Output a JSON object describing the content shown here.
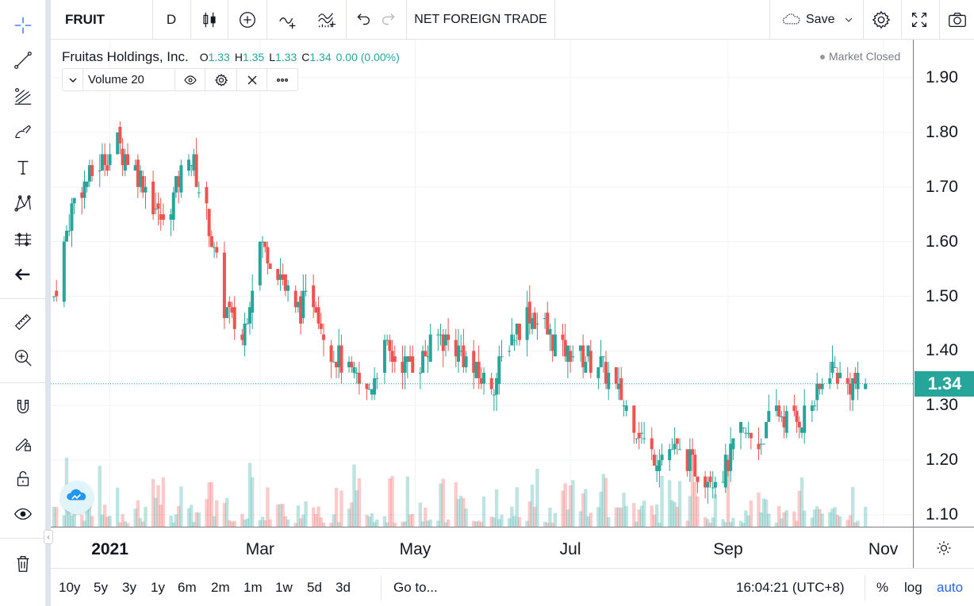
{
  "toolbar": {
    "symbol": "FRUIT",
    "interval": "D",
    "chart_name": "NET FOREIGN TRADE",
    "save_label": "Save"
  },
  "legend": {
    "name": "Fruitas Holdings, Inc.",
    "open_label": "O",
    "open_value": "1.33",
    "high_label": "H",
    "high_value": "1.35",
    "low_label": "L",
    "low_value": "1.33",
    "close_label": "C",
    "close_value": "1.34",
    "change": "0.00 (0.00%)",
    "market_status": "Market Closed",
    "study": "Volume 20"
  },
  "price_axis": {
    "ticks": [
      "1.90",
      "1.80",
      "1.70",
      "1.60",
      "1.50",
      "1.40",
      "1.30",
      "1.20",
      "1.10"
    ],
    "last_price": "1.34"
  },
  "time_axis": {
    "ticks": [
      "2021",
      "Mar",
      "May",
      "Jul",
      "Sep",
      "Nov"
    ]
  },
  "bottom_bar": {
    "ranges": [
      "10y",
      "5y",
      "3y",
      "1y",
      "6m",
      "2m",
      "1m",
      "1w",
      "5d",
      "3d"
    ],
    "goto": "Go to...",
    "clock": "16:04:21 (UTC+8)",
    "percent": "%",
    "log": "log",
    "auto": "auto"
  },
  "colors": {
    "up": "#26a69a",
    "down": "#ef5350",
    "accent": "#2962ff",
    "last_price_bg": "#26a69a"
  },
  "icons": {
    "left_toolbar": [
      "crosshair-icon",
      "trend-line-icon",
      "gann-fib-icon",
      "brush-icon",
      "text-icon",
      "pattern-icon",
      "prediction-icon",
      "back-arrow-icon",
      "ruler-icon",
      "zoom-in-icon",
      "magnet-icon",
      "lock-drawings-icon",
      "unlock-icon",
      "eye-icon",
      "trash-icon"
    ]
  },
  "chart_data": {
    "type": "candlestick",
    "symbol": "FRUIT",
    "ylim": [
      1.07,
      1.98
    ],
    "last_close": 1.34,
    "approx_close_path": [
      {
        "x": "2020-12-10",
        "y": 1.5
      },
      {
        "x": "2020-12-18",
        "y": 1.68
      },
      {
        "x": "2021-01-04",
        "y": 1.78
      },
      {
        "x": "2021-01-15",
        "y": 1.7
      },
      {
        "x": "2021-01-22",
        "y": 1.63
      },
      {
        "x": "2021-02-01",
        "y": 1.77
      },
      {
        "x": "2021-02-08",
        "y": 1.65
      },
      {
        "x": "2021-02-15",
        "y": 1.48
      },
      {
        "x": "2021-02-22",
        "y": 1.42
      },
      {
        "x": "2021-03-01",
        "y": 1.6
      },
      {
        "x": "2021-03-08",
        "y": 1.55
      },
      {
        "x": "2021-03-15",
        "y": 1.47
      },
      {
        "x": "2021-03-22",
        "y": 1.5
      },
      {
        "x": "2021-03-29",
        "y": 1.4
      },
      {
        "x": "2021-04-05",
        "y": 1.36
      },
      {
        "x": "2021-04-12",
        "y": 1.32
      },
      {
        "x": "2021-04-19",
        "y": 1.4
      },
      {
        "x": "2021-04-26",
        "y": 1.38
      },
      {
        "x": "2021-05-03",
        "y": 1.38
      },
      {
        "x": "2021-05-10",
        "y": 1.43
      },
      {
        "x": "2021-05-17",
        "y": 1.41
      },
      {
        "x": "2021-05-24",
        "y": 1.36
      },
      {
        "x": "2021-06-01",
        "y": 1.34
      },
      {
        "x": "2021-06-07",
        "y": 1.42
      },
      {
        "x": "2021-06-14",
        "y": 1.47
      },
      {
        "x": "2021-06-21",
        "y": 1.44
      },
      {
        "x": "2021-06-28",
        "y": 1.4
      },
      {
        "x": "2021-07-05",
        "y": 1.39
      },
      {
        "x": "2021-07-12",
        "y": 1.38
      },
      {
        "x": "2021-07-19",
        "y": 1.33
      },
      {
        "x": "2021-07-26",
        "y": 1.27
      },
      {
        "x": "2021-08-02",
        "y": 1.21
      },
      {
        "x": "2021-08-09",
        "y": 1.22
      },
      {
        "x": "2021-08-16",
        "y": 1.2
      },
      {
        "x": "2021-08-23",
        "y": 1.17
      },
      {
        "x": "2021-08-30",
        "y": 1.18
      },
      {
        "x": "2021-09-06",
        "y": 1.25
      },
      {
        "x": "2021-09-13",
        "y": 1.23
      },
      {
        "x": "2021-09-20",
        "y": 1.29
      },
      {
        "x": "2021-09-27",
        "y": 1.27
      },
      {
        "x": "2021-10-04",
        "y": 1.3
      },
      {
        "x": "2021-10-11",
        "y": 1.37
      },
      {
        "x": "2021-10-18",
        "y": 1.34
      },
      {
        "x": "2021-10-25",
        "y": 1.34
      }
    ]
  }
}
